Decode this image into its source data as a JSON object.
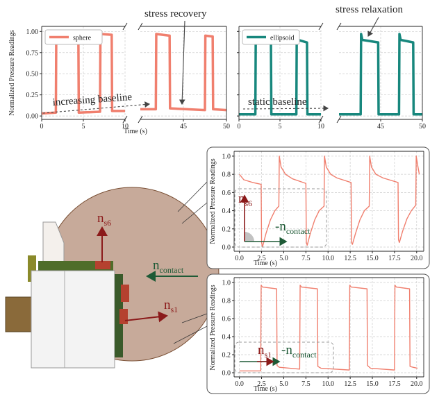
{
  "chart_data": [
    {
      "type": "line",
      "y_label": "Normalized Pressure Readings",
      "x_label": "Time (s)",
      "legend": "upper left",
      "grid": true,
      "ylim": [
        -0.04,
        1.06
      ],
      "yticks": [
        {
          "value": 0,
          "label": "0.00"
        },
        {
          "value": 0.25,
          "label": "0.25"
        },
        {
          "value": 0.5,
          "label": "0.50"
        },
        {
          "value": 0.75,
          "label": "0.75"
        },
        {
          "value": 1,
          "label": "1.00"
        }
      ],
      "panels": [
        {
          "xlim": [
            0,
            10
          ],
          "xticks": [
            0,
            5,
            10
          ]
        },
        {
          "xlim": [
            40,
            50
          ],
          "xticks": [
            45,
            50
          ]
        }
      ],
      "series": [
        {
          "name": "sphere",
          "color": "#f07f6e",
          "segments": [
            {
              "x": [
                0,
                1.7,
                1.75,
                4.4,
                4.45,
                7.0,
                7.05,
                8.4,
                8.45,
                10
              ],
              "values": [
                0.03,
                0.04,
                0.98,
                0.96,
                0.04,
                0.05,
                0.97,
                0.96,
                0.06,
                0.06
              ]
            },
            {
              "x": [
                40,
                41.8,
                41.85,
                43.4,
                43.45,
                47.5,
                47.55,
                48.4,
                48.45,
                50
              ],
              "values": [
                0.08,
                0.08,
                0.97,
                0.95,
                0.09,
                0.07,
                0.95,
                0.94,
                0.08,
                0.07
              ]
            }
          ]
        }
      ],
      "annotations": [
        "increasing baseline",
        "stress recovery"
      ]
    },
    {
      "type": "line",
      "legend": "upper left",
      "grid": true,
      "ytick_labels": false,
      "ylim": [
        -0.04,
        1.06
      ],
      "yticks": [
        0,
        0.25,
        0.5,
        0.75,
        1
      ],
      "panels": [
        {
          "xlim": [
            0,
            10
          ],
          "xticks": [
            0,
            5,
            10
          ]
        },
        {
          "xlim": [
            40,
            50
          ],
          "xticks": [
            45,
            50
          ]
        }
      ],
      "series": [
        {
          "name": "ellipsoid",
          "color": "#17877d",
          "segments": [
            {
              "x": [
                0,
                2,
                2.05,
                2.2,
                3.9,
                3.95,
                7,
                7.05,
                7.2,
                8.3,
                8.35,
                10
              ],
              "values": [
                0.02,
                0.02,
                0.97,
                0.9,
                0.87,
                0.02,
                0.02,
                0.97,
                0.9,
                0.87,
                0.02,
                0.02
              ]
            },
            {
              "x": [
                40,
                42.6,
                42.65,
                42.8,
                44.7,
                44.75,
                47.2,
                47.25,
                47.4,
                48.9,
                48.95,
                50
              ],
              "values": [
                0.02,
                0.02,
                0.97,
                0.9,
                0.87,
                0.02,
                0.02,
                0.97,
                0.9,
                0.87,
                0.02,
                0.02
              ]
            }
          ]
        }
      ],
      "annotations": [
        "static baseline",
        "stress relaxation"
      ]
    },
    {
      "type": "line",
      "y_label": "Normalized Pressure Readings",
      "x_label": "Time (s)",
      "grid": true,
      "xlim": [
        -0.6,
        20.8
      ],
      "ylim": [
        -0.046,
        1.053
      ],
      "xticks": [
        {
          "value": 0,
          "label": "0.0"
        },
        2.5,
        {
          "value": 5,
          "label": "5.0"
        },
        7.5,
        {
          "value": 10,
          "label": "10.0"
        },
        12.5,
        {
          "value": 15,
          "label": "15.0"
        },
        17.5,
        {
          "value": 20,
          "label": "20.0"
        }
      ],
      "yticks": [
        {
          "value": 0,
          "label": "0.0"
        },
        0.2,
        0.4,
        0.6,
        0.8,
        {
          "value": 1,
          "label": "1.0"
        }
      ],
      "series": [
        {
          "color": "#f07f6e",
          "x": [
            0,
            0.5,
            1.5,
            2.45,
            2.5,
            2.6,
            3.0,
            3.5,
            4.0,
            4.45,
            4.5,
            4.7,
            5.2,
            6.0,
            7.5,
            7.55,
            7.65,
            8.0,
            8.5,
            9.0,
            9.55,
            9.6,
            9.8,
            10.3,
            11,
            12.6,
            12.65,
            12.75,
            13.1,
            13.6,
            14.1,
            14.65,
            14.7,
            14.9,
            15.4,
            16.2,
            17.9,
            17.95,
            18.05,
            18.4,
            18.9,
            19.4,
            19.9,
            19.95,
            20.15,
            20.3
          ],
          "values": [
            0.8,
            0.74,
            0.71,
            0.69,
            0.05,
            0.0,
            0.15,
            0.3,
            0.4,
            0.45,
            1.0,
            0.88,
            0.8,
            0.75,
            0.7,
            0.05,
            0.02,
            0.15,
            0.3,
            0.4,
            0.45,
            1.0,
            0.88,
            0.8,
            0.76,
            0.71,
            0.05,
            0.03,
            0.15,
            0.3,
            0.4,
            0.45,
            1.0,
            0.88,
            0.8,
            0.76,
            0.71,
            0.08,
            0.05,
            0.17,
            0.31,
            0.4,
            0.46,
            1.0,
            0.88,
            0.8
          ]
        }
      ],
      "annotations": [
        {
          "main": "n",
          "sub": "s6"
        },
        {
          "main": "-n",
          "sub": "contact"
        }
      ]
    },
    {
      "type": "line",
      "y_label": "Normalized Pressure Readings",
      "x_label": "Time (s)",
      "grid": true,
      "xlim": [
        -0.6,
        20.8
      ],
      "ylim": [
        -0.046,
        1.054
      ],
      "xticks": [
        {
          "value": 0,
          "label": "0.0"
        },
        2.5,
        {
          "value": 5,
          "label": "5.0"
        },
        7.5,
        {
          "value": 10,
          "label": "10.0"
        },
        12.5,
        {
          "value": 15,
          "label": "15.0"
        },
        17.5,
        {
          "value": 20,
          "label": "20.0"
        }
      ],
      "yticks": [
        {
          "value": 0,
          "label": "0.0"
        },
        0.2,
        0.4,
        0.6,
        0.8,
        {
          "value": 1,
          "label": "1.0"
        }
      ],
      "series": [
        {
          "color": "#f07f6e",
          "x": [
            0,
            2.4,
            2.45,
            2.6,
            4.2,
            4.25,
            4.5,
            6.8,
            6.85,
            7.0,
            8.8,
            8.85,
            9.2,
            12.4,
            12.45,
            12.6,
            14.4,
            14.45,
            14.8,
            17.5,
            17.55,
            17.7,
            19.2,
            19.25,
            19.6,
            20.1
          ],
          "values": [
            0.02,
            0.02,
            0.97,
            0.95,
            0.93,
            0.08,
            0.06,
            0.04,
            0.97,
            0.95,
            0.93,
            0.07,
            0.05,
            0.03,
            0.97,
            0.95,
            0.93,
            0.08,
            0.05,
            0.03,
            0.97,
            0.95,
            0.93,
            0.07,
            0.06,
            0.05
          ]
        }
      ],
      "annotations": [
        {
          "main": "n",
          "sub": "s1"
        },
        {
          "main": "-n",
          "sub": "contact"
        }
      ]
    }
  ],
  "illustration": {
    "labels": [
      {
        "main": "n",
        "sub": "s6"
      },
      {
        "main": "n",
        "sub": "contact"
      },
      {
        "main": "n",
        "sub": "s1"
      }
    ]
  }
}
